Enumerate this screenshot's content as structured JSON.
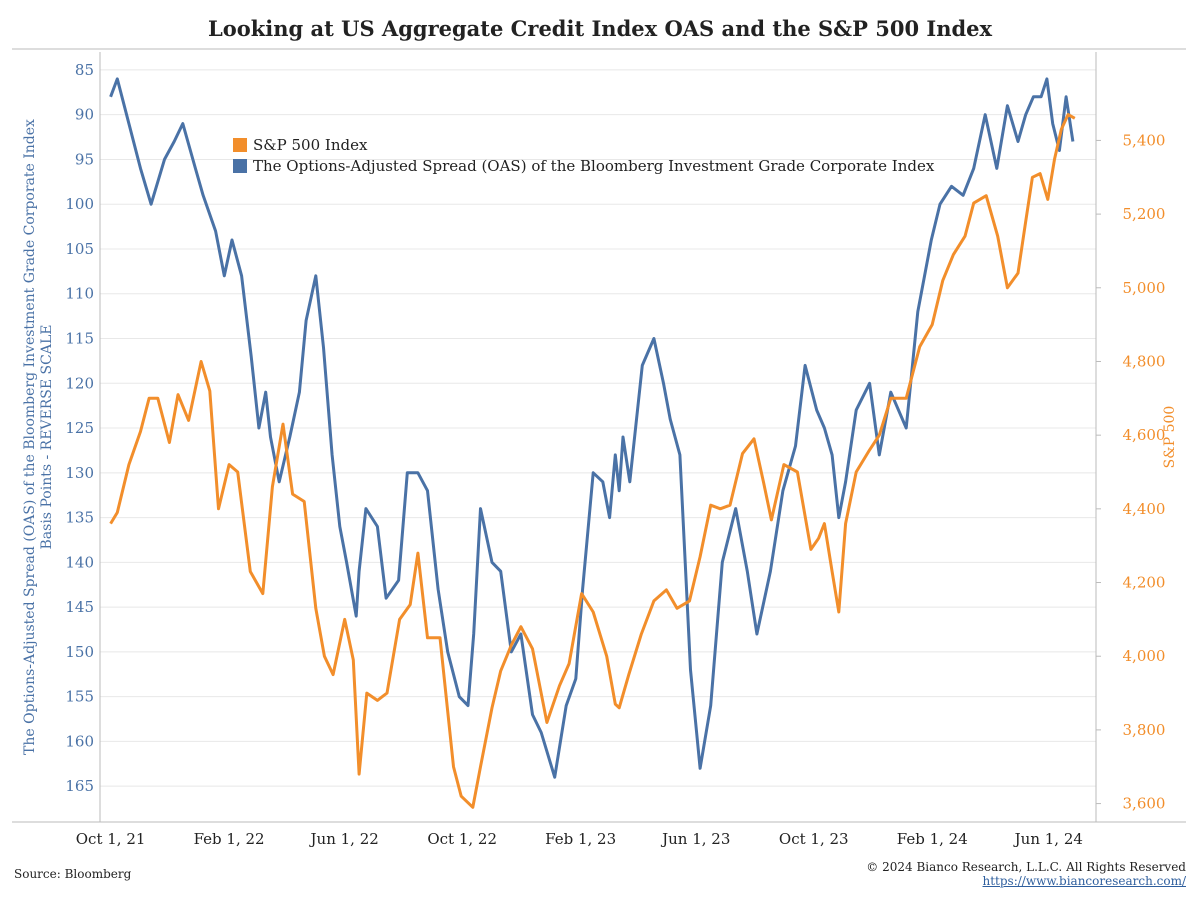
{
  "title": "Looking at US Aggregate Credit Index OAS and the S&P 500 Index",
  "footer": {
    "source": "Source: Bloomberg",
    "copyright": "© 2024 Bianco Research, L.L.C. All Rights Reserved",
    "url": "https://www.biancoresearch.com/"
  },
  "colors": {
    "oas": "#4a72a6",
    "spx": "#f28e2b",
    "grid": "#e8e8e8",
    "axis": "#bbbbbb",
    "text": "#222222"
  },
  "legend": [
    {
      "label": "S&P 500 Index",
      "color": "#f28e2b"
    },
    {
      "label": "The Options-Adjusted Spread (OAS) of the Bloomberg Investment Grade Corporate Index",
      "color": "#4a72a6"
    }
  ],
  "chart_data": {
    "type": "line",
    "x_ticks": [
      "Oct 1, 21",
      "Feb 1, 22",
      "Jun 1, 22",
      "Oct 1, 22",
      "Feb 1, 23",
      "Jun 1, 23",
      "Oct 1, 23",
      "Feb 1, 24",
      "Jun 1, 24"
    ],
    "xlim": [
      "2021-09-20",
      "2024-07-20"
    ],
    "y_left": {
      "label_line1": "The Options-Adjusted Spread (OAS) of the Bloomberg Investment Grade Corporate Index",
      "label_line2": "Basis Points - REVERSE SCALE",
      "ticks": [
        85,
        90,
        95,
        100,
        105,
        110,
        115,
        120,
        125,
        130,
        135,
        140,
        145,
        150,
        155,
        160,
        165
      ],
      "ylim": [
        83,
        169
      ],
      "reversed": true
    },
    "y_right": {
      "label": "S&P 500",
      "ticks": [
        "3,600",
        "3,800",
        "4,000",
        "4,200",
        "4,400",
        "4,600",
        "4,800",
        "5,000",
        "5,200",
        "5,400"
      ],
      "tick_values": [
        3600,
        3800,
        4000,
        4200,
        4400,
        4600,
        4800,
        5000,
        5200,
        5400
      ],
      "ylim": [
        3550,
        5640
      ]
    },
    "series": [
      {
        "name": "The Options-Adjusted Spread (OAS) of the Bloomberg Investment Grade Corporate Index",
        "axis": "left",
        "x": [
          "2021-10-01",
          "2021-10-08",
          "2021-10-20",
          "2021-11-01",
          "2021-11-12",
          "2021-11-26",
          "2021-12-06",
          "2021-12-15",
          "2021-12-28",
          "2022-01-05",
          "2022-01-18",
          "2022-01-27",
          "2022-02-04",
          "2022-02-14",
          "2022-02-24",
          "2022-03-04",
          "2022-03-11",
          "2022-03-16",
          "2022-03-25",
          "2022-04-05",
          "2022-04-15",
          "2022-04-22",
          "2022-05-02",
          "2022-05-10",
          "2022-05-19",
          "2022-05-27",
          "2022-06-03",
          "2022-06-13",
          "2022-06-16",
          "2022-06-23",
          "2022-07-05",
          "2022-07-14",
          "2022-07-27",
          "2022-08-05",
          "2022-08-16",
          "2022-08-26",
          "2022-09-06",
          "2022-09-16",
          "2022-09-28",
          "2022-10-07",
          "2022-10-13",
          "2022-10-20",
          "2022-11-01",
          "2022-11-10",
          "2022-11-21",
          "2022-12-01",
          "2022-12-13",
          "2022-12-22",
          "2023-01-05",
          "2023-01-17",
          "2023-01-27",
          "2023-02-03",
          "2023-02-14",
          "2023-02-24",
          "2023-03-03",
          "2023-03-09",
          "2023-03-13",
          "2023-03-17",
          "2023-03-24",
          "2023-04-06",
          "2023-04-18",
          "2023-04-28",
          "2023-05-05",
          "2023-05-15",
          "2023-05-26",
          "2023-06-05",
          "2023-06-16",
          "2023-06-28",
          "2023-07-12",
          "2023-07-24",
          "2023-08-03",
          "2023-08-17",
          "2023-08-30",
          "2023-09-12",
          "2023-09-22",
          "2023-10-04",
          "2023-10-12",
          "2023-10-20",
          "2023-10-27",
          "2023-11-03",
          "2023-11-14",
          "2023-11-28",
          "2023-12-08",
          "2023-12-20",
          "2024-01-05",
          "2024-01-17",
          "2024-01-31",
          "2024-02-09",
          "2024-02-21",
          "2024-03-04",
          "2024-03-15",
          "2024-03-27",
          "2024-04-08",
          "2024-04-19",
          "2024-04-30",
          "2024-05-08",
          "2024-05-16",
          "2024-05-24",
          "2024-05-30",
          "2024-06-05",
          "2024-06-12",
          "2024-06-19",
          "2024-06-26"
        ],
        "values": [
          88,
          86,
          91,
          96,
          100,
          95,
          93,
          91,
          96,
          99,
          103,
          108,
          104,
          108,
          117,
          125,
          121,
          126,
          131,
          126,
          121,
          113,
          108,
          116,
          128,
          136,
          140,
          146,
          141,
          134,
          136,
          144,
          142,
          130,
          130,
          132,
          143,
          150,
          155,
          156,
          148,
          134,
          140,
          141,
          150,
          148,
          157,
          159,
          164,
          156,
          153,
          143,
          130,
          131,
          135,
          128,
          132,
          126,
          131,
          118,
          115,
          120,
          124,
          128,
          152,
          163,
          156,
          140,
          134,
          141,
          148,
          141,
          132,
          127,
          118,
          123,
          125,
          128,
          135,
          131,
          123,
          120,
          128,
          121,
          125,
          112,
          104,
          100,
          98,
          99,
          96,
          90,
          96,
          89,
          93,
          90,
          88,
          88,
          86,
          91,
          94,
          88,
          93
        ]
      },
      {
        "name": "S&P 500 Index",
        "axis": "right",
        "x": [
          "2021-10-01",
          "2021-10-08",
          "2021-10-20",
          "2021-11-01",
          "2021-11-10",
          "2021-11-19",
          "2021-12-01",
          "2021-12-10",
          "2021-12-21",
          "2022-01-03",
          "2022-01-12",
          "2022-01-21",
          "2022-02-01",
          "2022-02-10",
          "2022-02-23",
          "2022-03-08",
          "2022-03-18",
          "2022-03-29",
          "2022-04-08",
          "2022-04-20",
          "2022-05-02",
          "2022-05-11",
          "2022-05-20",
          "2022-06-01",
          "2022-06-10",
          "2022-06-16",
          "2022-06-24",
          "2022-07-05",
          "2022-07-15",
          "2022-07-28",
          "2022-08-08",
          "2022-08-16",
          "2022-08-26",
          "2022-09-08",
          "2022-09-22",
          "2022-09-30",
          "2022-10-12",
          "2022-10-20",
          "2022-11-01",
          "2022-11-10",
          "2022-11-21",
          "2022-12-01",
          "2022-12-13",
          "2022-12-28",
          "2023-01-10",
          "2023-01-20",
          "2023-02-02",
          "2023-02-14",
          "2023-02-28",
          "2023-03-09",
          "2023-03-13",
          "2023-03-23",
          "2023-04-05",
          "2023-04-18",
          "2023-05-01",
          "2023-05-12",
          "2023-05-25",
          "2023-06-05",
          "2023-06-16",
          "2023-06-26",
          "2023-07-06",
          "2023-07-19",
          "2023-07-31",
          "2023-08-10",
          "2023-08-18",
          "2023-08-31",
          "2023-09-14",
          "2023-09-28",
          "2023-10-06",
          "2023-10-12",
          "2023-10-20",
          "2023-10-27",
          "2023-11-03",
          "2023-11-14",
          "2023-11-28",
          "2023-12-08",
          "2023-12-20",
          "2024-01-05",
          "2024-01-19",
          "2024-02-01",
          "2024-02-12",
          "2024-02-23",
          "2024-03-06",
          "2024-03-15",
          "2024-03-28",
          "2024-04-09",
          "2024-04-19",
          "2024-04-30",
          "2024-05-08",
          "2024-05-15",
          "2024-05-23",
          "2024-05-31",
          "2024-06-07",
          "2024-06-14",
          "2024-06-21",
          "2024-06-28"
        ],
        "values": [
          4360,
          4390,
          4520,
          4610,
          4700,
          4700,
          4580,
          4710,
          4640,
          4800,
          4720,
          4400,
          4520,
          4500,
          4230,
          4170,
          4460,
          4630,
          4440,
          4420,
          4130,
          4000,
          3950,
          4100,
          3990,
          3680,
          3900,
          3880,
          3900,
          4100,
          4140,
          4280,
          4050,
          4050,
          3700,
          3620,
          3590,
          3700,
          3860,
          3960,
          4030,
          4080,
          4020,
          3820,
          3920,
          3980,
          4170,
          4120,
          4000,
          3870,
          3860,
          3950,
          4060,
          4150,
          4180,
          4130,
          4150,
          4270,
          4410,
          4400,
          4410,
          4550,
          4590,
          4470,
          4370,
          4520,
          4500,
          4290,
          4320,
          4360,
          4230,
          4120,
          4360,
          4500,
          4560,
          4600,
          4700,
          4700,
          4840,
          4900,
          5020,
          5090,
          5140,
          5230,
          5250,
          5140,
          5000,
          5040,
          5180,
          5300,
          5310,
          5240,
          5350,
          5430,
          5470,
          5460
        ]
      }
    ]
  }
}
